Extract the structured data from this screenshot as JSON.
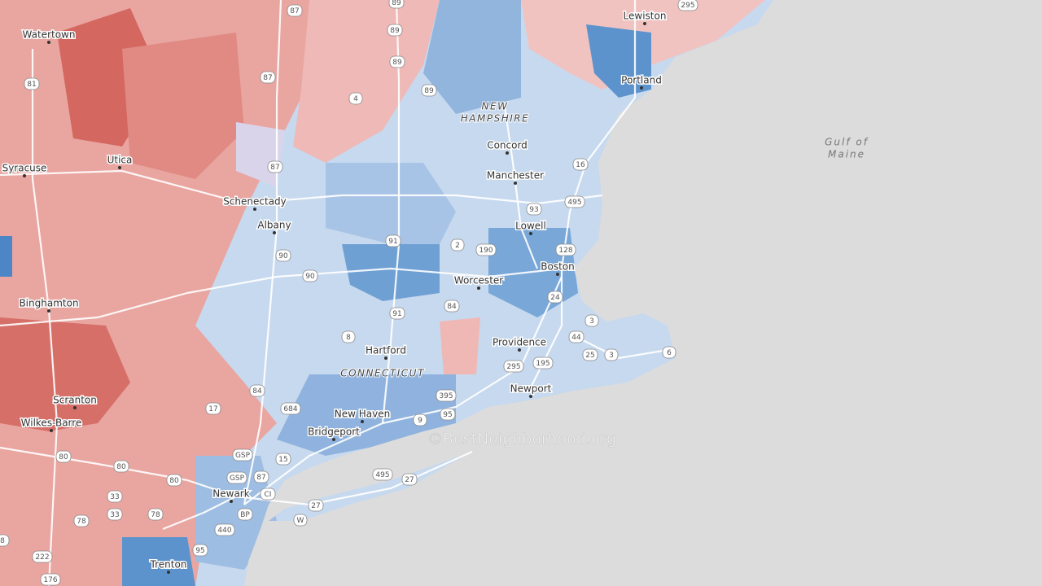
{
  "map": {
    "cities": [
      "Watertown",
      "Lewiston",
      "Portland",
      "Syracuse",
      "Utica",
      "Schenectady",
      "Albany",
      "Concord",
      "Manchester",
      "Lowell",
      "Boston",
      "Worcester",
      "Providence",
      "Hartford",
      "Newport",
      "New Haven",
      "Bridgeport",
      "Binghamton",
      "Scranton",
      "Wilkes-Barre",
      "Newark",
      "Trenton"
    ],
    "states": [
      [
        "NEW",
        "HAMPSHIRE"
      ],
      [
        "CONNECTICUT"
      ]
    ],
    "water": [
      "Gulf of",
      "Maine"
    ],
    "routes": [
      "295",
      "87",
      "89",
      "89",
      "89",
      "81",
      "87",
      "4",
      "89",
      "87",
      "16",
      "93",
      "495",
      "91",
      "2",
      "190",
      "128",
      "90",
      "90",
      "91",
      "84",
      "24",
      "3",
      "8",
      "44",
      "6",
      "25",
      "3",
      "195",
      "295",
      "84",
      "395",
      "17",
      "684",
      "9",
      "95",
      "15",
      "495",
      "27",
      "80",
      "80",
      "80",
      "33",
      "33",
      "78",
      "78",
      "GSP",
      "GSP",
      "87",
      "CI",
      "BP",
      "W",
      "27",
      "440",
      "95",
      "222",
      "176",
      "8"
    ],
    "watermark": "©BestNeighborhood.org"
  }
}
